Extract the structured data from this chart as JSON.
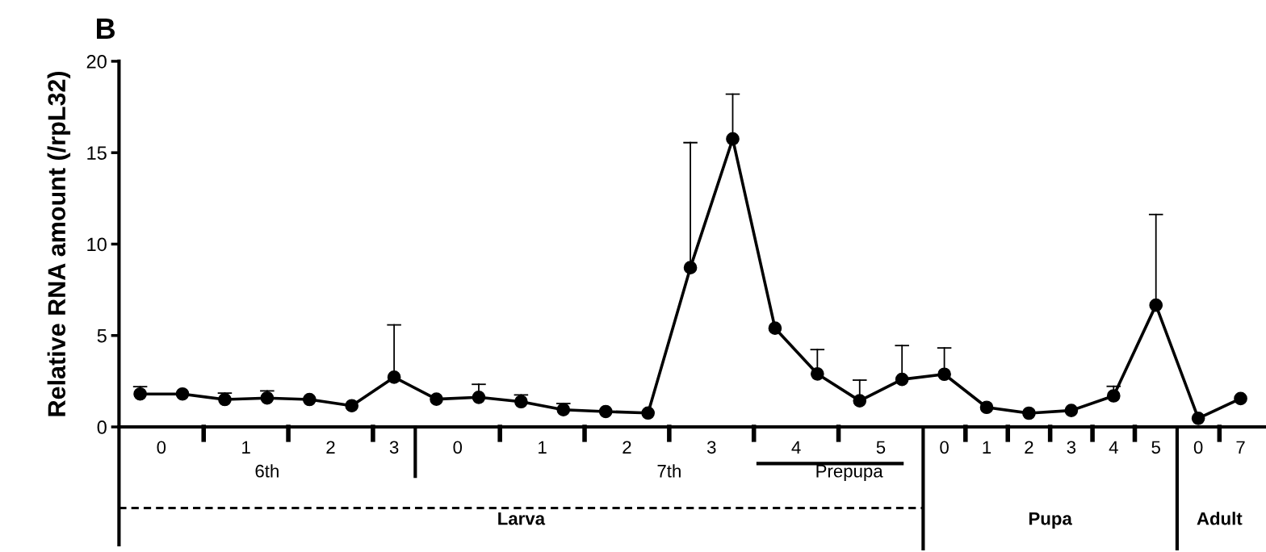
{
  "chart_data": {
    "type": "line",
    "title": "B",
    "ylabel": "Relative RNA amount (/rpL32)",
    "categories": [
      null,
      null,
      null,
      null,
      null,
      null,
      null,
      null,
      null,
      null,
      null,
      null,
      null,
      null,
      null,
      null,
      null,
      null,
      null,
      null,
      null,
      null,
      null,
      null,
      null,
      null,
      null
    ],
    "series": [
      {
        "color": "#000000",
        "values": [
          1.8,
          1.8,
          1.5,
          1.58,
          1.5,
          1.16,
          2.72,
          1.52,
          1.62,
          1.38,
          0.94,
          0.84,
          0.76,
          8.71,
          15.75,
          5.4,
          2.9,
          1.43,
          2.6,
          2.88,
          1.07,
          0.75,
          0.9,
          1.7,
          6.66,
          0.47,
          1.55
        ],
        "errors": [
          [
            1.8,
            2.2
          ],
          null,
          [
            1.5,
            1.85
          ],
          [
            1.58,
            1.97
          ],
          null,
          null,
          [
            2.72,
            5.58
          ],
          null,
          [
            1.62,
            2.33
          ],
          [
            1.38,
            1.75
          ],
          [
            0.94,
            1.28
          ],
          null,
          null,
          [
            8.71,
            15.55
          ],
          [
            15.75,
            18.2
          ],
          null,
          [
            2.9,
            4.23
          ],
          [
            1.43,
            2.56
          ],
          [
            2.6,
            4.45
          ],
          [
            2.88,
            4.32
          ],
          null,
          null,
          null,
          [
            1.7,
            2.22
          ],
          [
            6.66,
            11.62
          ],
          null,
          null
        ]
      }
    ],
    "ylim": [
      0,
      20
    ],
    "yticks": [
      0,
      5,
      10,
      15,
      20
    ],
    "marker": "circle",
    "line_style": "solid",
    "grid": false,
    "annotations": [
      "0",
      "1",
      "2",
      "3",
      "0",
      "1",
      "2",
      "3",
      "4",
      "5",
      "0",
      "1",
      "2",
      "3",
      "4",
      "5",
      "0",
      "7",
      "6th",
      "7th",
      "Prepupa",
      "Larva",
      "Pupa",
      "Adult"
    ]
  }
}
